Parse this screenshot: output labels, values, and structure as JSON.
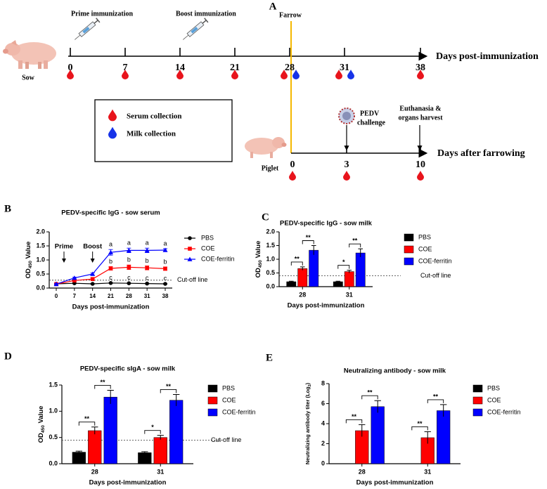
{
  "diagram": {
    "panel": "A",
    "sow_label": "Sow",
    "piglet_label": "Piglet",
    "sow_axis_label": "Days post-immunization",
    "piglet_axis_label": "Days after farrowing",
    "sow_days": [
      "0",
      "7",
      "14",
      "21",
      "28",
      "31",
      "38"
    ],
    "piglet_days": [
      "0",
      "3",
      "10"
    ],
    "events": {
      "prime": "Prime immunization",
      "boost": "Boost immunization",
      "farrow": "Farrow",
      "challenge": [
        "PEDV",
        "challenge"
      ],
      "harvest": [
        "Euthanasia &",
        "organs harvest"
      ]
    },
    "legend": [
      {
        "name": "Serum collection",
        "color": "#e8141c"
      },
      {
        "name": "Milk collection",
        "color": "#1733e8"
      }
    ]
  },
  "chart_data": [
    {
      "panel": "B",
      "type": "line",
      "title": "PEDV-specific IgG - sow serum",
      "ylabel": [
        "OD",
        "450",
        " Value"
      ],
      "xlabel": "Days post-immunization",
      "categories": [
        "0",
        "7",
        "14",
        "21",
        "28",
        "31",
        "38"
      ],
      "ylim": [
        0,
        2
      ],
      "yticks": [
        {
          "value": 0,
          "label": "0.0"
        },
        0.5,
        {
          "value": 1,
          "label": "1.0"
        },
        1.5,
        {
          "value": 2,
          "label": "2.0"
        }
      ],
      "cutoff": {
        "value": 0.28,
        "label": "Cut-off line"
      },
      "annotations": [
        "Prime",
        "Boost"
      ],
      "series": [
        {
          "name": "PBS",
          "color": "#000000",
          "marker": "circle",
          "values": [
            0.15,
            0.17,
            0.15,
            0.18,
            0.17,
            0.16,
            0.15
          ],
          "errors": [
            0.01,
            0.01,
            0.01,
            0.01,
            0.01,
            0.01,
            0.01
          ],
          "labels": [
            null,
            null,
            null,
            "c",
            "c",
            "c",
            "c"
          ]
        },
        {
          "name": "COE",
          "color": "#ff0000",
          "marker": "square",
          "values": [
            0.14,
            0.27,
            0.32,
            0.7,
            0.74,
            0.72,
            0.69
          ],
          "errors": [
            0.02,
            0.03,
            0.04,
            0.06,
            0.08,
            0.07,
            0.06
          ],
          "labels": [
            null,
            null,
            null,
            "b",
            "b",
            "b",
            "b"
          ]
        },
        {
          "name": "COE-ferritin",
          "color": "#0000ff",
          "marker": "triangle",
          "values": [
            0.14,
            0.36,
            0.5,
            1.27,
            1.34,
            1.34,
            1.35
          ],
          "errors": [
            0.02,
            0.03,
            0.04,
            0.1,
            0.08,
            0.08,
            0.05
          ],
          "labels": [
            null,
            null,
            null,
            "a",
            "a",
            "a",
            "a"
          ]
        }
      ]
    },
    {
      "panel": "C",
      "type": "bar",
      "title": "PEDV-specific IgG - sow milk",
      "ylabel": [
        "OD",
        "450",
        " Value"
      ],
      "xlabel": "Days post-immunization",
      "categories": [
        "28",
        "31"
      ],
      "ylim": [
        0,
        2
      ],
      "yticks": [
        {
          "value": 0,
          "label": "0.0"
        },
        0.5,
        {
          "value": 1,
          "label": "1.0"
        },
        1.5,
        {
          "value": 2,
          "label": "2.0"
        }
      ],
      "cutoff": {
        "value": 0.4,
        "label": "Cut-off line"
      },
      "significance": [
        [
          "**",
          "**"
        ],
        [
          "*",
          "**"
        ]
      ],
      "series": [
        {
          "name": "PBS",
          "color": "#000000",
          "values": [
            0.18,
            0.18
          ],
          "errors": [
            0.02,
            0.02
          ]
        },
        {
          "name": "COE",
          "color": "#ff0000",
          "values": [
            0.66,
            0.55
          ],
          "errors": [
            0.06,
            0.05
          ]
        },
        {
          "name": "COE-ferritin",
          "color": "#0000ff",
          "values": [
            1.33,
            1.23
          ],
          "errors": [
            0.17,
            0.15
          ]
        }
      ]
    },
    {
      "panel": "D",
      "type": "bar",
      "title": "PEDV-specific sIgA - sow milk",
      "ylabel": [
        "OD",
        "450",
        " Value"
      ],
      "xlabel": "Days post-immunization",
      "categories": [
        "28",
        "31"
      ],
      "ylim": [
        0,
        1.5
      ],
      "yticks": [
        {
          "value": 0,
          "label": "0.0"
        },
        0.5,
        {
          "value": 1,
          "label": "1.0"
        },
        1.5
      ],
      "cutoff": {
        "value": 0.45,
        "label": "Cut-off line"
      },
      "significance": [
        [
          "**",
          "**"
        ],
        [
          "*",
          "**"
        ]
      ],
      "series": [
        {
          "name": "PBS",
          "color": "#000000",
          "values": [
            0.22,
            0.21
          ],
          "errors": [
            0.02,
            0.02
          ]
        },
        {
          "name": "COE",
          "color": "#ff0000",
          "values": [
            0.63,
            0.5
          ],
          "errors": [
            0.07,
            0.04
          ]
        },
        {
          "name": "COE-ferritin",
          "color": "#0000ff",
          "values": [
            1.27,
            1.21
          ],
          "errors": [
            0.13,
            0.11
          ]
        }
      ]
    },
    {
      "panel": "E",
      "type": "bar",
      "title": "Neutralizing antibody - sow milk",
      "ylabel": [
        "Neutralizing antibody titer (Log",
        "2",
        ")"
      ],
      "xlabel": "Days post-immunization",
      "categories": [
        "28",
        "31"
      ],
      "ylim": [
        0,
        8
      ],
      "yticks": [
        0,
        2,
        4,
        6,
        8
      ],
      "significance": [
        [
          "**",
          "**"
        ],
        [
          "**",
          "**"
        ]
      ],
      "series": [
        {
          "name": "PBS",
          "color": "#000000",
          "values": [
            0,
            0
          ],
          "errors": [
            0,
            0
          ]
        },
        {
          "name": "COE",
          "color": "#ff0000",
          "values": [
            3.3,
            2.6
          ],
          "errors": [
            0.6,
            0.6
          ]
        },
        {
          "name": "COE-ferritin",
          "color": "#0000ff",
          "values": [
            5.7,
            5.3
          ],
          "errors": [
            0.6,
            0.6
          ]
        }
      ]
    }
  ]
}
